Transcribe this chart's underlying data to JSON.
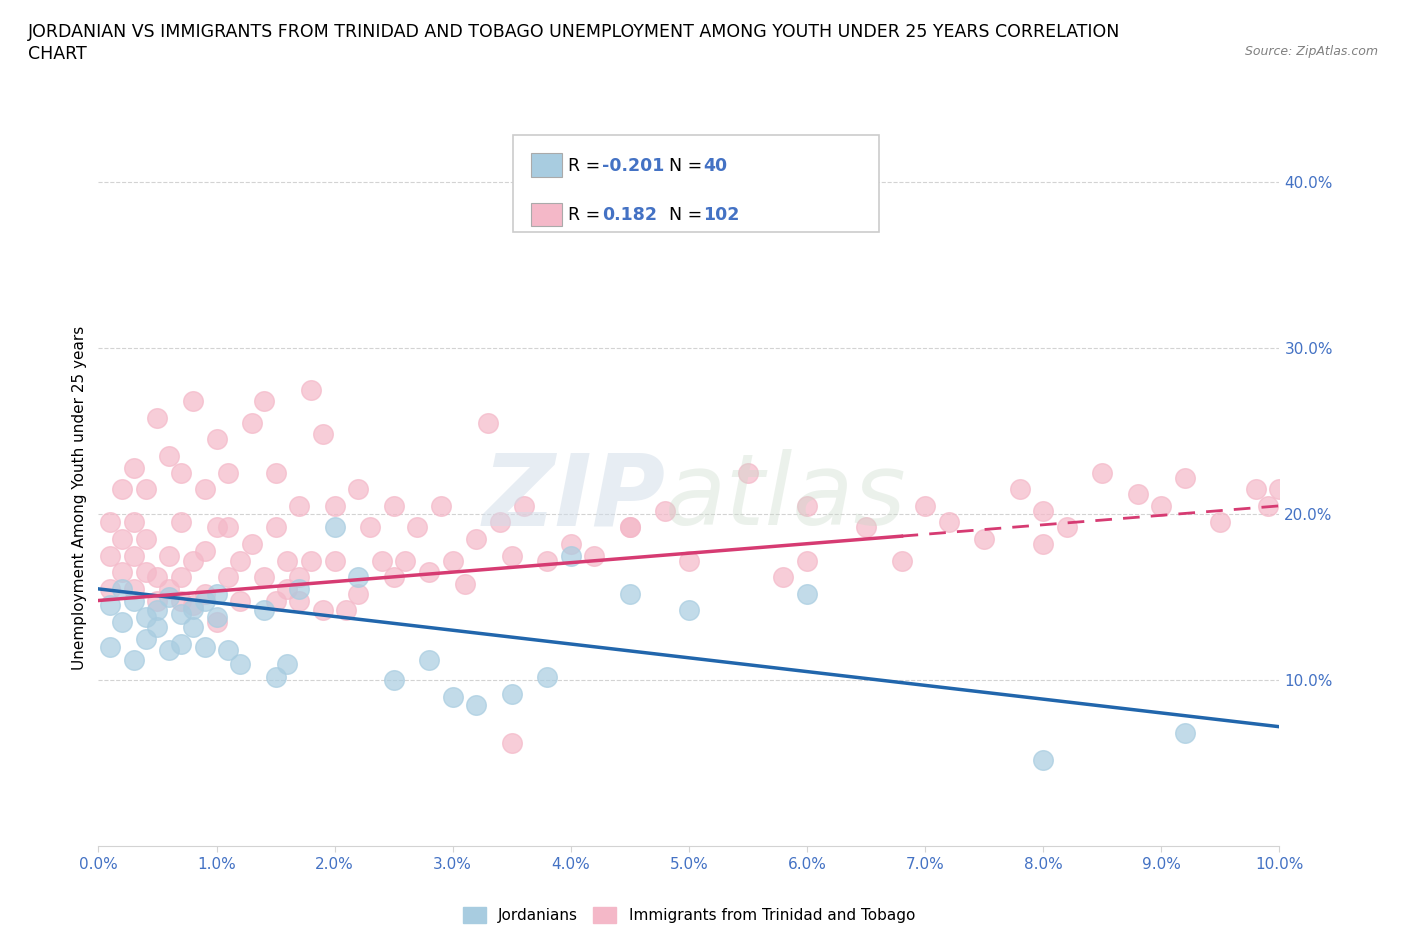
{
  "title_line1": "JORDANIAN VS IMMIGRANTS FROM TRINIDAD AND TOBAGO UNEMPLOYMENT AMONG YOUTH UNDER 25 YEARS CORRELATION",
  "title_line2": "CHART",
  "source": "Source: ZipAtlas.com",
  "ylabel": "Unemployment Among Youth under 25 years",
  "xlim": [
    0.0,
    0.1
  ],
  "ylim": [
    0.0,
    0.42
  ],
  "xticks": [
    0.0,
    0.01,
    0.02,
    0.03,
    0.04,
    0.05,
    0.06,
    0.07,
    0.08,
    0.09,
    0.1
  ],
  "yticks_right": [
    0.1,
    0.2,
    0.3,
    0.4
  ],
  "yticks_grid": [
    0.1,
    0.2,
    0.3,
    0.4
  ],
  "xtick_labels": [
    "0.0%",
    "1.0%",
    "2.0%",
    "3.0%",
    "4.0%",
    "5.0%",
    "6.0%",
    "7.0%",
    "8.0%",
    "9.0%",
    "10.0%"
  ],
  "right_tick_labels": [
    "10.0%",
    "20.0%",
    "30.0%",
    "40.0%"
  ],
  "blue_color": "#a8cce0",
  "pink_color": "#f4b8c8",
  "blue_line_color": "#2166ac",
  "pink_line_color": "#d63b72",
  "legend_label_blue": "Jordanians",
  "legend_label_pink": "Immigrants from Trinidad and Tobago",
  "blue_trend_x0": 0.0,
  "blue_trend_y0": 0.155,
  "blue_trend_x1": 0.1,
  "blue_trend_y1": 0.072,
  "pink_trend_x0": 0.0,
  "pink_trend_y0": 0.148,
  "pink_trend_x1": 0.1,
  "pink_trend_y1": 0.205,
  "blue_x": [
    0.001,
    0.001,
    0.002,
    0.002,
    0.003,
    0.003,
    0.004,
    0.004,
    0.005,
    0.005,
    0.006,
    0.006,
    0.007,
    0.007,
    0.008,
    0.008,
    0.009,
    0.009,
    0.01,
    0.01,
    0.011,
    0.012,
    0.014,
    0.015,
    0.016,
    0.017,
    0.02,
    0.022,
    0.025,
    0.028,
    0.03,
    0.032,
    0.035,
    0.038,
    0.04,
    0.045,
    0.05,
    0.06,
    0.08,
    0.092
  ],
  "blue_y": [
    0.145,
    0.12,
    0.135,
    0.155,
    0.148,
    0.112,
    0.138,
    0.125,
    0.142,
    0.132,
    0.15,
    0.118,
    0.14,
    0.122,
    0.132,
    0.143,
    0.12,
    0.148,
    0.138,
    0.152,
    0.118,
    0.11,
    0.142,
    0.102,
    0.11,
    0.155,
    0.192,
    0.162,
    0.1,
    0.112,
    0.09,
    0.085,
    0.092,
    0.102,
    0.175,
    0.152,
    0.142,
    0.152,
    0.052,
    0.068
  ],
  "pink_x": [
    0.001,
    0.001,
    0.001,
    0.002,
    0.002,
    0.002,
    0.003,
    0.003,
    0.003,
    0.003,
    0.004,
    0.004,
    0.004,
    0.005,
    0.005,
    0.005,
    0.006,
    0.006,
    0.006,
    0.007,
    0.007,
    0.007,
    0.007,
    0.008,
    0.008,
    0.008,
    0.009,
    0.009,
    0.009,
    0.01,
    0.01,
    0.01,
    0.011,
    0.011,
    0.011,
    0.012,
    0.012,
    0.013,
    0.013,
    0.014,
    0.014,
    0.015,
    0.015,
    0.015,
    0.016,
    0.016,
    0.017,
    0.017,
    0.018,
    0.018,
    0.019,
    0.019,
    0.02,
    0.02,
    0.021,
    0.022,
    0.022,
    0.023,
    0.024,
    0.025,
    0.025,
    0.026,
    0.027,
    0.028,
    0.029,
    0.03,
    0.031,
    0.032,
    0.033,
    0.034,
    0.035,
    0.036,
    0.038,
    0.04,
    0.042,
    0.045,
    0.048,
    0.05,
    0.055,
    0.058,
    0.06,
    0.065,
    0.068,
    0.07,
    0.072,
    0.075,
    0.078,
    0.08,
    0.082,
    0.085,
    0.088,
    0.09,
    0.092,
    0.095,
    0.098,
    0.099,
    0.1,
    0.035,
    0.017,
    0.06,
    0.08,
    0.045
  ],
  "pink_y": [
    0.155,
    0.175,
    0.195,
    0.185,
    0.165,
    0.215,
    0.155,
    0.175,
    0.195,
    0.228,
    0.165,
    0.185,
    0.215,
    0.148,
    0.162,
    0.258,
    0.155,
    0.175,
    0.235,
    0.162,
    0.195,
    0.225,
    0.148,
    0.145,
    0.172,
    0.268,
    0.152,
    0.178,
    0.215,
    0.135,
    0.192,
    0.245,
    0.162,
    0.192,
    0.225,
    0.148,
    0.172,
    0.255,
    0.182,
    0.162,
    0.268,
    0.192,
    0.225,
    0.148,
    0.172,
    0.155,
    0.205,
    0.148,
    0.275,
    0.172,
    0.248,
    0.142,
    0.172,
    0.205,
    0.142,
    0.152,
    0.215,
    0.192,
    0.172,
    0.162,
    0.205,
    0.172,
    0.192,
    0.165,
    0.205,
    0.172,
    0.158,
    0.185,
    0.255,
    0.195,
    0.175,
    0.205,
    0.172,
    0.182,
    0.175,
    0.192,
    0.202,
    0.172,
    0.225,
    0.162,
    0.205,
    0.192,
    0.172,
    0.205,
    0.195,
    0.185,
    0.215,
    0.202,
    0.192,
    0.225,
    0.212,
    0.205,
    0.222,
    0.195,
    0.215,
    0.205,
    0.215,
    0.062,
    0.162,
    0.172,
    0.182,
    0.192
  ]
}
